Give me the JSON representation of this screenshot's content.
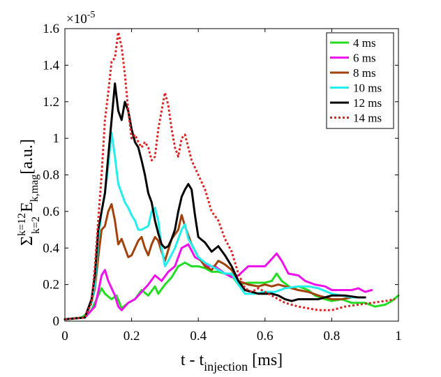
{
  "chart_data": {
    "type": "line",
    "title": "",
    "xlabel": {
      "main": "t - t",
      "sub": "injection",
      "unit": "[ms]"
    },
    "ylabel": {
      "sigma": "Σ",
      "sup": "k=12",
      "sub": "k=2",
      "e": "E",
      "esub": "k,mag",
      "unit": "[a.u.]"
    },
    "exponent_label": {
      "base": "×10",
      "power": "-5"
    },
    "xlim": [
      0,
      1
    ],
    "ylim": [
      0,
      1.6
    ],
    "x_ticks": [
      0,
      0.2,
      0.4,
      0.6,
      0.8,
      1
    ],
    "x_tick_labels": [
      "0",
      "0.2",
      "0.4",
      "0.6",
      "0.8",
      "1"
    ],
    "y_ticks": [
      0,
      0.2,
      0.4,
      0.6,
      0.8,
      1,
      1.2,
      1.4,
      1.6
    ],
    "y_tick_labels": [
      "0",
      "0.2",
      "0.4",
      "0.6",
      "0.8",
      "1",
      "1.2",
      "1.4",
      "1.6"
    ],
    "legend_position": "top-right",
    "series": [
      {
        "name": "4 ms",
        "color": "#22dd22",
        "dashed": false,
        "points": [
          [
            0,
            0.01
          ],
          [
            0.05,
            0.02
          ],
          [
            0.08,
            0.06
          ],
          [
            0.1,
            0.14
          ],
          [
            0.11,
            0.18
          ],
          [
            0.12,
            0.15
          ],
          [
            0.14,
            0.12
          ],
          [
            0.155,
            0.14
          ],
          [
            0.17,
            0.07
          ],
          [
            0.19,
            0.1
          ],
          [
            0.21,
            0.12
          ],
          [
            0.23,
            0.17
          ],
          [
            0.25,
            0.14
          ],
          [
            0.27,
            0.19
          ],
          [
            0.28,
            0.15
          ],
          [
            0.3,
            0.2
          ],
          [
            0.32,
            0.24
          ],
          [
            0.34,
            0.3
          ],
          [
            0.36,
            0.32
          ],
          [
            0.38,
            0.3
          ],
          [
            0.4,
            0.3
          ],
          [
            0.42,
            0.29
          ],
          [
            0.44,
            0.27
          ],
          [
            0.46,
            0.27
          ],
          [
            0.48,
            0.26
          ],
          [
            0.5,
            0.25
          ],
          [
            0.52,
            0.2
          ],
          [
            0.55,
            0.21
          ],
          [
            0.58,
            0.21
          ],
          [
            0.6,
            0.21
          ],
          [
            0.62,
            0.22
          ],
          [
            0.635,
            0.26
          ],
          [
            0.65,
            0.22
          ],
          [
            0.68,
            0.18
          ],
          [
            0.7,
            0.19
          ],
          [
            0.73,
            0.17
          ],
          [
            0.75,
            0.14
          ],
          [
            0.78,
            0.12
          ],
          [
            0.8,
            0.11
          ],
          [
            0.83,
            0.12
          ],
          [
            0.86,
            0.1
          ],
          [
            0.9,
            0.1
          ],
          [
            0.93,
            0.08
          ],
          [
            0.96,
            0.09
          ],
          [
            0.98,
            0.11
          ],
          [
            1,
            0.14
          ]
        ]
      },
      {
        "name": "6 ms",
        "color": "#ee11ee",
        "dashed": false,
        "points": [
          [
            0,
            0.01
          ],
          [
            0.06,
            0.02
          ],
          [
            0.09,
            0.08
          ],
          [
            0.1,
            0.16
          ],
          [
            0.11,
            0.25
          ],
          [
            0.12,
            0.28
          ],
          [
            0.13,
            0.22
          ],
          [
            0.14,
            0.18
          ],
          [
            0.15,
            0.14
          ],
          [
            0.16,
            0.08
          ],
          [
            0.17,
            0.06
          ],
          [
            0.19,
            0.1
          ],
          [
            0.21,
            0.12
          ],
          [
            0.23,
            0.16
          ],
          [
            0.25,
            0.2
          ],
          [
            0.27,
            0.25
          ],
          [
            0.29,
            0.22
          ],
          [
            0.31,
            0.27
          ],
          [
            0.33,
            0.3
          ],
          [
            0.35,
            0.4
          ],
          [
            0.37,
            0.42
          ],
          [
            0.39,
            0.35
          ],
          [
            0.41,
            0.33
          ],
          [
            0.43,
            0.3
          ],
          [
            0.45,
            0.3
          ],
          [
            0.48,
            0.26
          ],
          [
            0.5,
            0.24
          ],
          [
            0.52,
            0.25
          ],
          [
            0.55,
            0.3
          ],
          [
            0.58,
            0.3
          ],
          [
            0.6,
            0.3
          ],
          [
            0.62,
            0.34
          ],
          [
            0.635,
            0.37
          ],
          [
            0.65,
            0.33
          ],
          [
            0.67,
            0.26
          ],
          [
            0.7,
            0.25
          ],
          [
            0.72,
            0.22
          ],
          [
            0.75,
            0.2
          ],
          [
            0.78,
            0.19
          ],
          [
            0.8,
            0.17
          ],
          [
            0.83,
            0.17
          ],
          [
            0.86,
            0.17
          ],
          [
            0.88,
            0.18
          ],
          [
            0.9,
            0.16
          ],
          [
            0.92,
            0.17
          ]
        ]
      },
      {
        "name": "8 ms",
        "color": "#a0420a",
        "dashed": false,
        "points": [
          [
            0,
            0.01
          ],
          [
            0.06,
            0.02
          ],
          [
            0.08,
            0.1
          ],
          [
            0.09,
            0.18
          ],
          [
            0.1,
            0.35
          ],
          [
            0.11,
            0.5
          ],
          [
            0.12,
            0.52
          ],
          [
            0.13,
            0.6
          ],
          [
            0.14,
            0.64
          ],
          [
            0.15,
            0.55
          ],
          [
            0.16,
            0.42
          ],
          [
            0.17,
            0.45
          ],
          [
            0.18,
            0.4
          ],
          [
            0.19,
            0.35
          ],
          [
            0.2,
            0.36
          ],
          [
            0.21,
            0.4
          ],
          [
            0.22,
            0.44
          ],
          [
            0.23,
            0.46
          ],
          [
            0.24,
            0.4
          ],
          [
            0.25,
            0.36
          ],
          [
            0.26,
            0.42
          ],
          [
            0.27,
            0.46
          ],
          [
            0.28,
            0.44
          ],
          [
            0.29,
            0.38
          ],
          [
            0.3,
            0.33
          ],
          [
            0.32,
            0.45
          ],
          [
            0.34,
            0.5
          ],
          [
            0.35,
            0.58
          ],
          [
            0.36,
            0.52
          ],
          [
            0.38,
            0.42
          ],
          [
            0.4,
            0.35
          ],
          [
            0.42,
            0.3
          ],
          [
            0.44,
            0.28
          ],
          [
            0.46,
            0.33
          ],
          [
            0.48,
            0.31
          ],
          [
            0.5,
            0.28
          ],
          [
            0.52,
            0.22
          ],
          [
            0.55,
            0.2
          ],
          [
            0.58,
            0.19
          ],
          [
            0.6,
            0.2
          ],
          [
            0.62,
            0.19
          ],
          [
            0.64,
            0.2
          ],
          [
            0.66,
            0.19
          ],
          [
            0.7,
            0.17
          ],
          [
            0.73,
            0.16
          ],
          [
            0.76,
            0.14
          ],
          [
            0.8,
            0.12
          ],
          [
            0.83,
            0.12
          ],
          [
            0.86,
            0.13
          ],
          [
            0.9,
            0.13
          ]
        ]
      },
      {
        "name": "10 ms",
        "color": "#22eeee",
        "dashed": false,
        "points": [
          [
            0,
            0.01
          ],
          [
            0.06,
            0.02
          ],
          [
            0.08,
            0.1
          ],
          [
            0.09,
            0.2
          ],
          [
            0.1,
            0.45
          ],
          [
            0.11,
            0.6
          ],
          [
            0.12,
            0.7
          ],
          [
            0.13,
            0.85
          ],
          [
            0.14,
            1.03
          ],
          [
            0.15,
            0.9
          ],
          [
            0.16,
            0.75
          ],
          [
            0.17,
            0.7
          ],
          [
            0.18,
            0.65
          ],
          [
            0.19,
            0.62
          ],
          [
            0.2,
            0.58
          ],
          [
            0.21,
            0.55
          ],
          [
            0.22,
            0.5
          ],
          [
            0.23,
            0.5
          ],
          [
            0.25,
            0.52
          ],
          [
            0.26,
            0.6
          ],
          [
            0.27,
            0.62
          ],
          [
            0.28,
            0.55
          ],
          [
            0.29,
            0.4
          ],
          [
            0.3,
            0.3
          ],
          [
            0.31,
            0.33
          ],
          [
            0.33,
            0.4
          ],
          [
            0.35,
            0.5
          ],
          [
            0.36,
            0.53
          ],
          [
            0.37,
            0.45
          ],
          [
            0.38,
            0.42
          ],
          [
            0.4,
            0.35
          ],
          [
            0.42,
            0.32
          ],
          [
            0.44,
            0.3
          ],
          [
            0.46,
            0.28
          ],
          [
            0.48,
            0.26
          ],
          [
            0.5,
            0.26
          ],
          [
            0.52,
            0.2
          ],
          [
            0.54,
            0.15
          ],
          [
            0.57,
            0.15
          ],
          [
            0.6,
            0.16
          ],
          [
            0.63,
            0.16
          ],
          [
            0.66,
            0.18
          ],
          [
            0.7,
            0.19
          ],
          [
            0.73,
            0.19
          ],
          [
            0.76,
            0.18
          ],
          [
            0.8,
            0.15
          ],
          [
            0.83,
            0.14
          ],
          [
            0.86,
            0.13
          ],
          [
            0.9,
            0.13
          ]
        ]
      },
      {
        "name": "12 ms",
        "color": "#000000",
        "dashed": false,
        "points": [
          [
            0,
            0.01
          ],
          [
            0.06,
            0.02
          ],
          [
            0.08,
            0.12
          ],
          [
            0.09,
            0.25
          ],
          [
            0.1,
            0.5
          ],
          [
            0.11,
            0.6
          ],
          [
            0.12,
            0.7
          ],
          [
            0.13,
            0.9
          ],
          [
            0.14,
            1.1
          ],
          [
            0.15,
            1.3
          ],
          [
            0.16,
            1.15
          ],
          [
            0.17,
            1.1
          ],
          [
            0.18,
            1.2
          ],
          [
            0.19,
            1.15
          ],
          [
            0.2,
            1.05
          ],
          [
            0.21,
            0.98
          ],
          [
            0.22,
            0.95
          ],
          [
            0.23,
            0.88
          ],
          [
            0.24,
            0.8
          ],
          [
            0.25,
            0.7
          ],
          [
            0.26,
            0.65
          ],
          [
            0.27,
            0.55
          ],
          [
            0.28,
            0.48
          ],
          [
            0.29,
            0.42
          ],
          [
            0.3,
            0.4
          ],
          [
            0.31,
            0.41
          ],
          [
            0.32,
            0.45
          ],
          [
            0.33,
            0.5
          ],
          [
            0.34,
            0.6
          ],
          [
            0.35,
            0.68
          ],
          [
            0.36,
            0.72
          ],
          [
            0.37,
            0.75
          ],
          [
            0.38,
            0.72
          ],
          [
            0.39,
            0.58
          ],
          [
            0.4,
            0.46
          ],
          [
            0.42,
            0.43
          ],
          [
            0.44,
            0.38
          ],
          [
            0.46,
            0.41
          ],
          [
            0.48,
            0.36
          ],
          [
            0.5,
            0.3
          ],
          [
            0.52,
            0.22
          ],
          [
            0.54,
            0.17
          ],
          [
            0.56,
            0.16
          ],
          [
            0.58,
            0.15
          ],
          [
            0.6,
            0.15
          ],
          [
            0.62,
            0.15
          ],
          [
            0.64,
            0.14
          ],
          [
            0.66,
            0.12
          ],
          [
            0.68,
            0.11
          ],
          [
            0.7,
            0.12
          ],
          [
            0.73,
            0.12
          ],
          [
            0.76,
            0.12
          ],
          [
            0.8,
            0.14
          ],
          [
            0.84,
            0.14
          ],
          [
            0.88,
            0.13
          ],
          [
            0.9,
            0.13
          ]
        ]
      },
      {
        "name": "14 ms",
        "color": "#dd2222",
        "dashed": true,
        "points": [
          [
            0,
            0.01
          ],
          [
            0.06,
            0.02
          ],
          [
            0.08,
            0.1
          ],
          [
            0.09,
            0.3
          ],
          [
            0.1,
            0.55
          ],
          [
            0.11,
            0.8
          ],
          [
            0.12,
            1.1
          ],
          [
            0.13,
            1.25
          ],
          [
            0.14,
            1.42
          ],
          [
            0.15,
            1.44
          ],
          [
            0.16,
            1.58
          ],
          [
            0.17,
            1.5
          ],
          [
            0.18,
            1.35
          ],
          [
            0.19,
            1.15
          ],
          [
            0.2,
            1.0
          ],
          [
            0.21,
            1.02
          ],
          [
            0.22,
            0.98
          ],
          [
            0.23,
            0.95
          ],
          [
            0.24,
            0.98
          ],
          [
            0.25,
            0.95
          ],
          [
            0.26,
            0.88
          ],
          [
            0.27,
            0.9
          ],
          [
            0.28,
            1.05
          ],
          [
            0.29,
            1.15
          ],
          [
            0.3,
            1.25
          ],
          [
            0.31,
            1.18
          ],
          [
            0.32,
            1.05
          ],
          [
            0.33,
            0.95
          ],
          [
            0.34,
            0.9
          ],
          [
            0.35,
            1.0
          ],
          [
            0.36,
            1.02
          ],
          [
            0.37,
            0.95
          ],
          [
            0.38,
            0.88
          ],
          [
            0.4,
            0.8
          ],
          [
            0.42,
            0.72
          ],
          [
            0.44,
            0.6
          ],
          [
            0.46,
            0.55
          ],
          [
            0.48,
            0.45
          ],
          [
            0.5,
            0.38
          ],
          [
            0.52,
            0.26
          ],
          [
            0.54,
            0.18
          ],
          [
            0.56,
            0.16
          ],
          [
            0.58,
            0.18
          ],
          [
            0.6,
            0.16
          ],
          [
            0.62,
            0.14
          ],
          [
            0.64,
            0.12
          ],
          [
            0.66,
            0.1
          ],
          [
            0.7,
            0.08
          ],
          [
            0.73,
            0.07
          ],
          [
            0.76,
            0.06
          ],
          [
            0.8,
            0.06
          ],
          [
            0.84,
            0.08
          ],
          [
            0.88,
            0.09
          ],
          [
            0.92,
            0.1
          ],
          [
            0.96,
            0.11
          ],
          [
            0.99,
            0.12
          ]
        ]
      }
    ]
  }
}
